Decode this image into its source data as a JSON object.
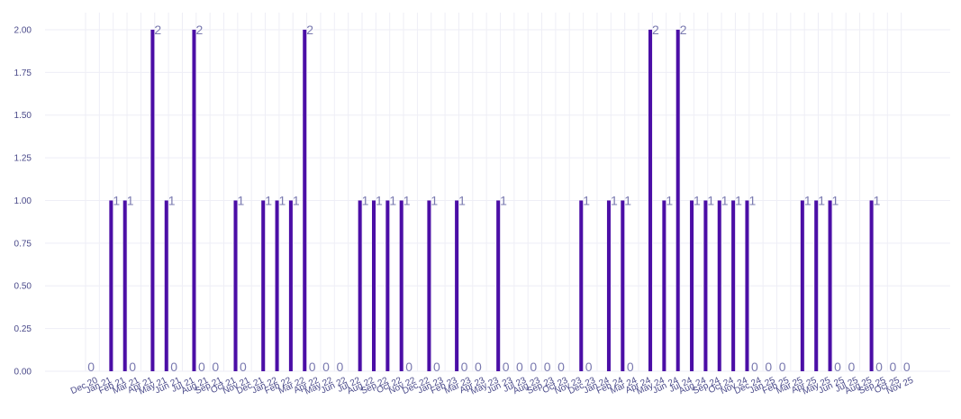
{
  "chart_data": {
    "type": "bar",
    "title": "",
    "xlabel": "",
    "ylabel": "",
    "ylim": [
      0,
      2.1
    ],
    "grid": true,
    "legend": "none",
    "bar_color": "#4b0ea6",
    "yticks": [
      "0.00",
      "0.25",
      "0.50",
      "0.75",
      "1.00",
      "1.25",
      "1.50",
      "1.75",
      "2.00"
    ],
    "categories": [
      "Dec 20",
      "Jan 21",
      "Feb 21",
      "Mar 21",
      "Apr 21",
      "May 21",
      "Jun 21",
      "Jul 21",
      "Aug 21",
      "Sep 21",
      "Oct 21",
      "Nov 21",
      "Dec 21",
      "Jan 22",
      "Feb 22",
      "Mar 22",
      "Apr 22",
      "May 22",
      "Jun 22",
      "Jul 22",
      "Aug 22",
      "Sep 22",
      "Oct 22",
      "Nov 22",
      "Dec 22",
      "Jan 23",
      "Feb 23",
      "Mar 23",
      "Apr 23",
      "May 23",
      "Jun 23",
      "Jul 23",
      "Aug 23",
      "Sep 23",
      "Oct 23",
      "Nov 23",
      "Dec 23",
      "Jan 24",
      "Feb 24",
      "Mar 24",
      "Apr 24",
      "May 24",
      "Jun 24",
      "Jul 24",
      "Aug 24",
      "Sep 24",
      "Oct 24",
      "Nov 24",
      "Dec 24",
      "Jan 25",
      "Feb 25",
      "Mar 25",
      "Apr 25",
      "May 25",
      "Jun 25",
      "Jul 25",
      "Aug 25",
      "Sep 25",
      "Oct 25",
      "Nov 25"
    ],
    "values": [
      0,
      1,
      1,
      0,
      2,
      1,
      0,
      2,
      0,
      0,
      1,
      0,
      1,
      1,
      1,
      2,
      0,
      0,
      0,
      1,
      1,
      1,
      1,
      0,
      1,
      0,
      1,
      0,
      0,
      1,
      0,
      0,
      0,
      0,
      0,
      1,
      0,
      1,
      1,
      0,
      2,
      1,
      2,
      1,
      1,
      1,
      1,
      1,
      0,
      0,
      0,
      1,
      1,
      1,
      0,
      0,
      1,
      0,
      0,
      0
    ]
  }
}
